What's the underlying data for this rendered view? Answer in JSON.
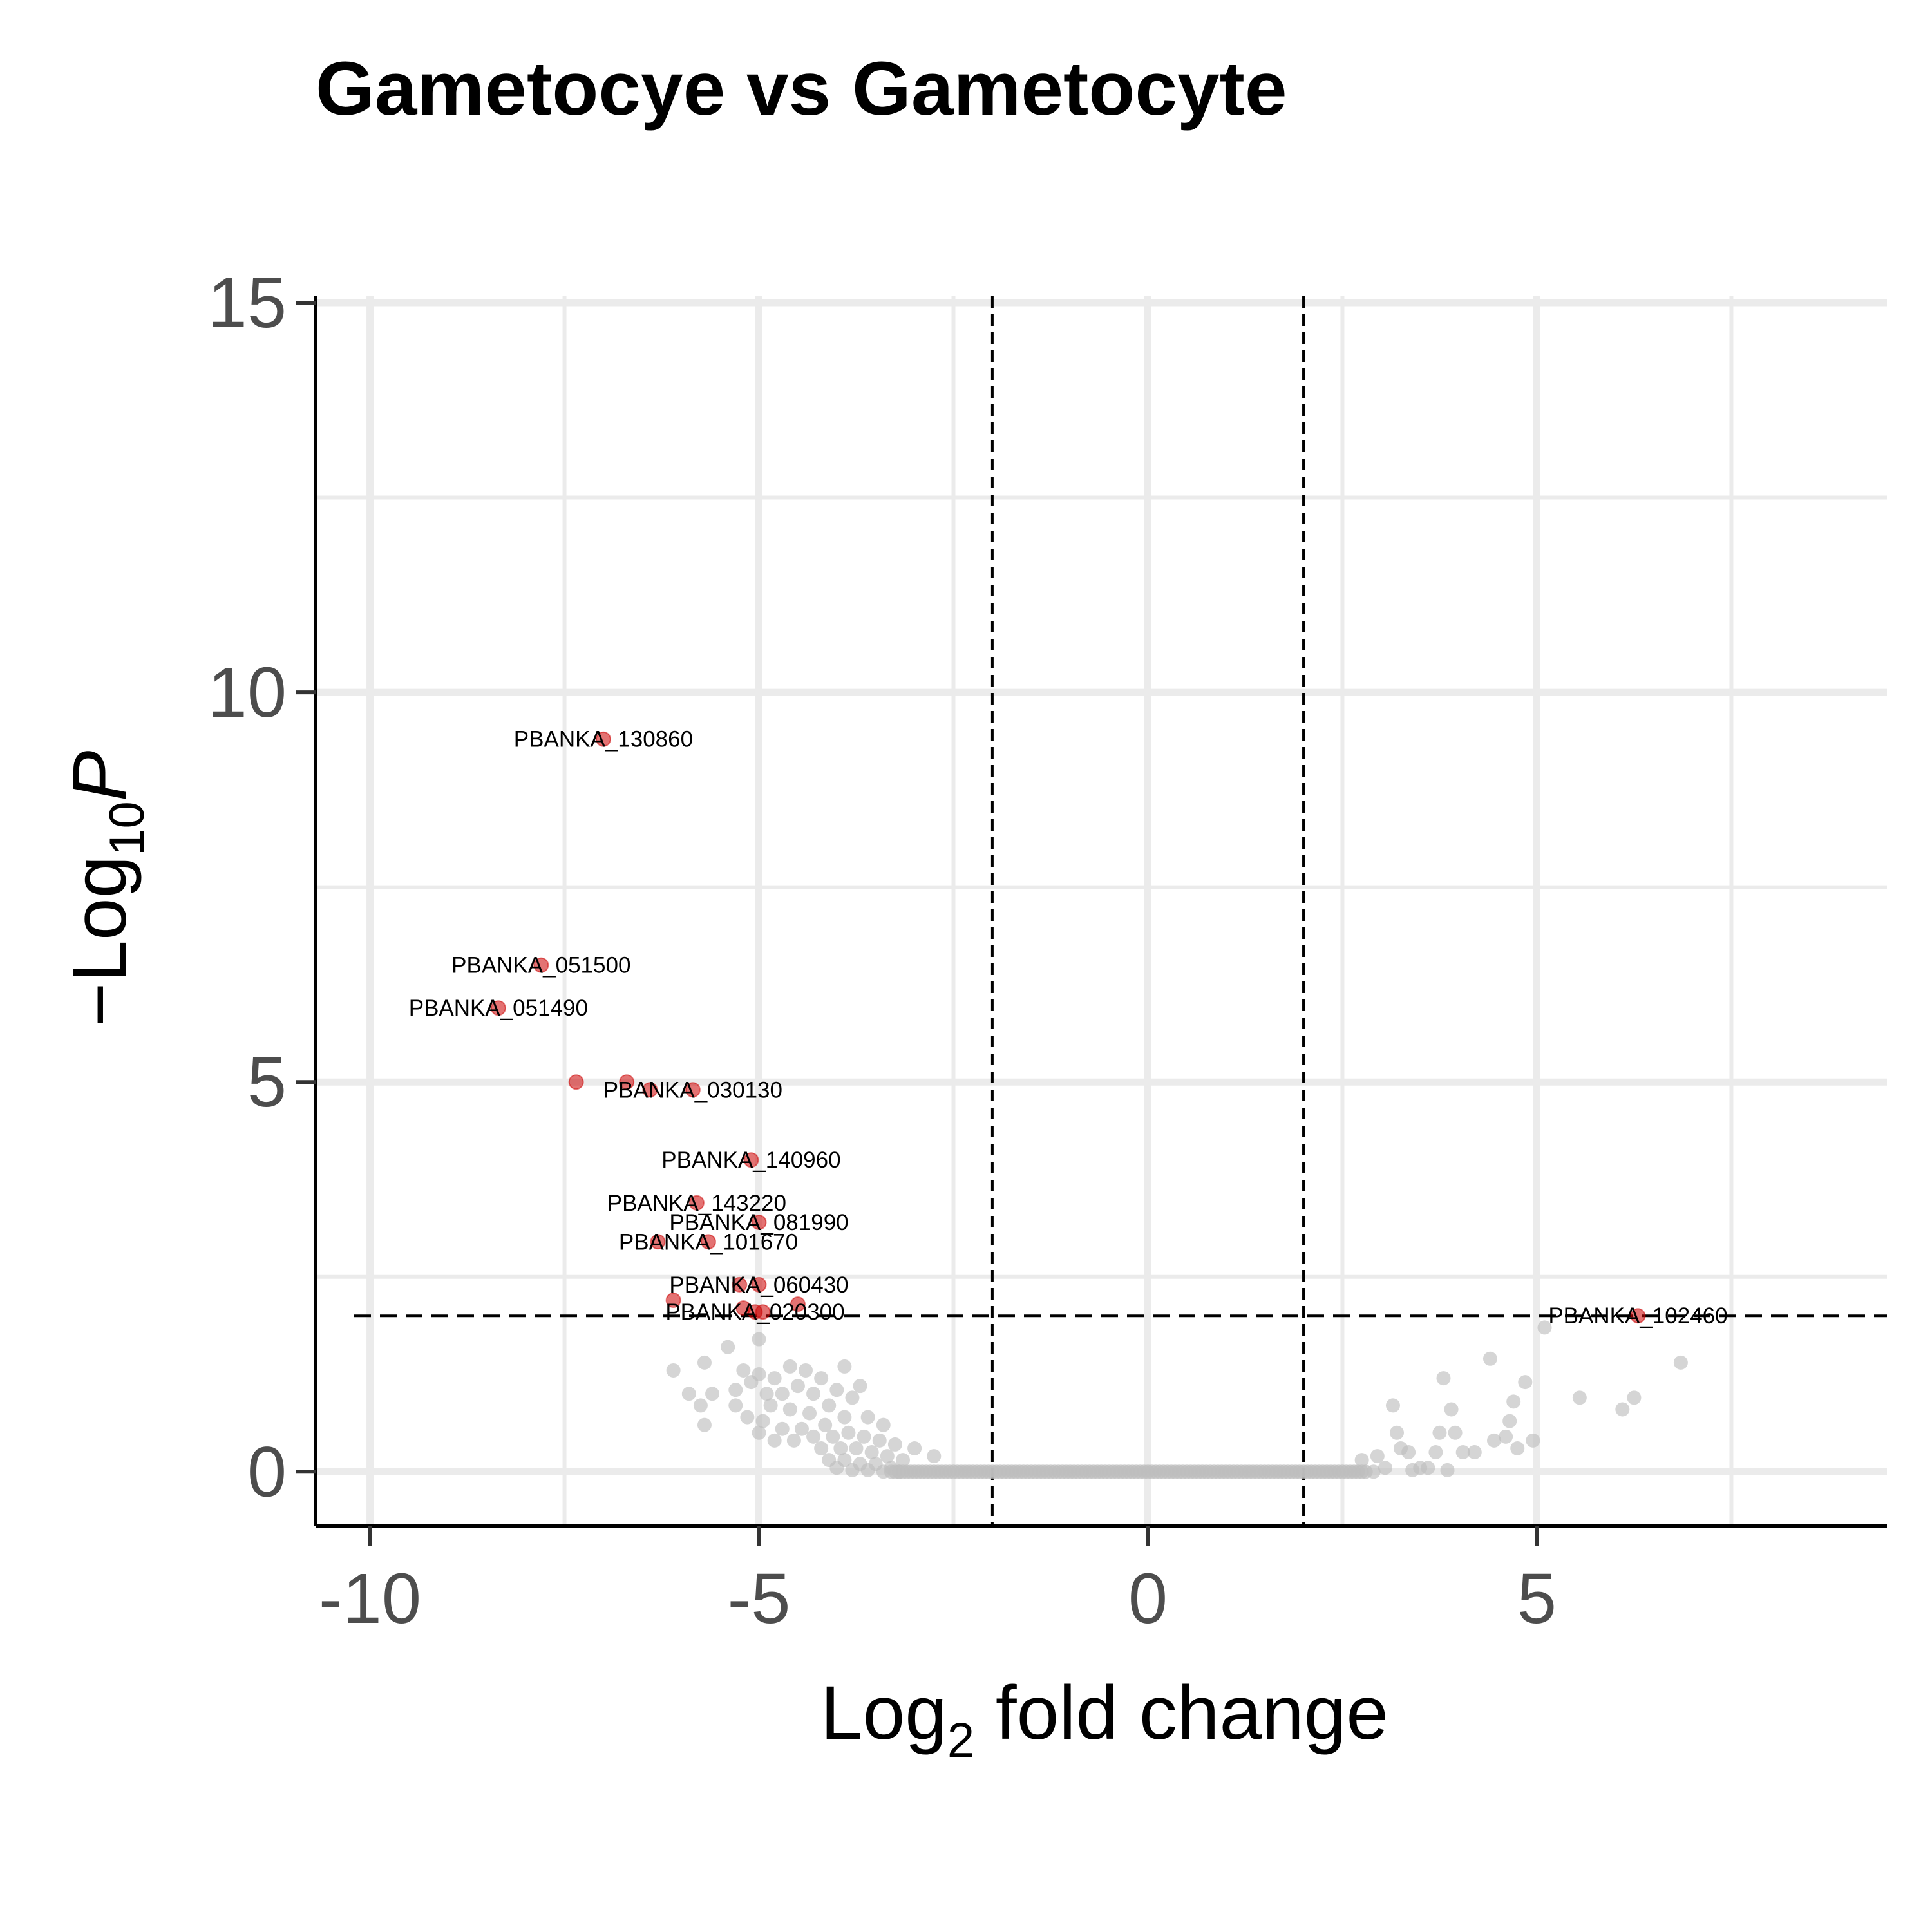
{
  "chart_data": {
    "type": "scatter",
    "title": "Gametocye vs Gametocyte",
    "xlabel_main": "Log",
    "xlabel_sub": "2",
    "xlabel_rest": " fold change",
    "ylabel_prefix": "−Log",
    "ylabel_sub": "10",
    "ylabel_italic": "P",
    "xlim": [
      -10.7,
      9.5
    ],
    "ylim": [
      -0.7,
      15
    ],
    "x_ticks": [
      -10,
      -5,
      0,
      5
    ],
    "x_tick_labels": [
      "-10",
      "-5",
      "0",
      "5"
    ],
    "y_ticks": [
      0,
      5,
      10,
      15
    ],
    "y_tick_labels": [
      "0",
      "5",
      "10",
      "15"
    ],
    "fc_cutoffs": [
      -2,
      2
    ],
    "p_cutoff": 2,
    "grid": true,
    "colors": {
      "significant": "#cc0000",
      "not_significant": "#bebebe",
      "grid": "#ebebeb",
      "axis": "#000000"
    },
    "significant_points": [
      {
        "x": -7.0,
        "y": 9.4,
        "label": "PBANKA_130860"
      },
      {
        "x": -7.8,
        "y": 6.5,
        "label": "PBANKA_051500"
      },
      {
        "x": -8.35,
        "y": 5.95,
        "label": "PBANKA_051490"
      },
      {
        "x": -7.35,
        "y": 5.0,
        "label": ""
      },
      {
        "x": -6.7,
        "y": 5.0,
        "label": ""
      },
      {
        "x": -6.4,
        "y": 4.9,
        "label": ""
      },
      {
        "x": -5.85,
        "y": 4.9,
        "label": "PBANKA_030130"
      },
      {
        "x": -5.1,
        "y": 4.0,
        "label": "PBANKA_140960"
      },
      {
        "x": -5.8,
        "y": 3.45,
        "label": "PBANKA_143220"
      },
      {
        "x": -5.0,
        "y": 3.2,
        "label": "PBANKA_081990"
      },
      {
        "x": -5.65,
        "y": 2.95,
        "label": "PBANKA_101670"
      },
      {
        "x": -6.3,
        "y": 2.95,
        "label": ""
      },
      {
        "x": -5.0,
        "y": 2.4,
        "label": "PBANKA_060430"
      },
      {
        "x": -5.25,
        "y": 2.4,
        "label": ""
      },
      {
        "x": -6.1,
        "y": 2.2,
        "label": ""
      },
      {
        "x": -4.5,
        "y": 2.15,
        "label": ""
      },
      {
        "x": -5.2,
        "y": 2.1,
        "label": ""
      },
      {
        "x": -5.05,
        "y": 2.05,
        "label": "PBANKA_020300"
      },
      {
        "x": -4.95,
        "y": 2.05,
        "label": ""
      },
      {
        "x": 6.3,
        "y": 2.0,
        "label": "PBANKA_102460"
      }
    ],
    "other_points": [
      [
        -5.0,
        1.7
      ],
      [
        -5.4,
        1.6
      ],
      [
        -5.7,
        1.4
      ],
      [
        -6.1,
        1.3
      ],
      [
        -5.2,
        1.3
      ],
      [
        -5.0,
        1.25
      ],
      [
        -4.6,
        1.35
      ],
      [
        -4.4,
        1.3
      ],
      [
        -4.8,
        1.2
      ],
      [
        -5.1,
        1.15
      ],
      [
        -4.5,
        1.1
      ],
      [
        -4.2,
        1.2
      ],
      [
        -3.9,
        1.35
      ],
      [
        -3.7,
        1.1
      ],
      [
        -5.9,
        1.0
      ],
      [
        -5.6,
        1.0
      ],
      [
        -5.3,
        1.05
      ],
      [
        -4.9,
        1.0
      ],
      [
        -4.7,
        1.0
      ],
      [
        -4.3,
        1.0
      ],
      [
        -4.0,
        1.05
      ],
      [
        -3.8,
        0.95
      ],
      [
        -5.75,
        0.85
      ],
      [
        -5.3,
        0.85
      ],
      [
        -4.85,
        0.85
      ],
      [
        -4.6,
        0.8
      ],
      [
        -4.35,
        0.75
      ],
      [
        -4.1,
        0.85
      ],
      [
        -5.7,
        0.6
      ],
      [
        -5.15,
        0.7
      ],
      [
        -4.95,
        0.65
      ],
      [
        -4.7,
        0.55
      ],
      [
        -4.45,
        0.55
      ],
      [
        -4.15,
        0.6
      ],
      [
        -3.9,
        0.7
      ],
      [
        -3.6,
        0.7
      ],
      [
        -3.4,
        0.6
      ],
      [
        -5.0,
        0.5
      ],
      [
        -4.8,
        0.4
      ],
      [
        -4.55,
        0.4
      ],
      [
        -4.3,
        0.45
      ],
      [
        -4.05,
        0.45
      ],
      [
        -3.85,
        0.5
      ],
      [
        -3.65,
        0.45
      ],
      [
        -3.45,
        0.4
      ],
      [
        -3.25,
        0.35
      ],
      [
        -3.0,
        0.3
      ],
      [
        -2.75,
        0.2
      ],
      [
        -4.2,
        0.3
      ],
      [
        -3.95,
        0.3
      ],
      [
        -3.75,
        0.3
      ],
      [
        -3.55,
        0.25
      ],
      [
        -3.35,
        0.2
      ],
      [
        -3.15,
        0.15
      ],
      [
        -4.1,
        0.15
      ],
      [
        -3.9,
        0.15
      ],
      [
        -3.7,
        0.1
      ],
      [
        -3.5,
        0.1
      ],
      [
        -3.3,
        0.05
      ],
      [
        -4.0,
        0.05
      ],
      [
        -3.8,
        0.02
      ],
      [
        -3.6,
        0.02
      ],
      [
        -3.4,
        0.0
      ],
      [
        -3.2,
        0.0
      ],
      [
        2.75,
        0.15
      ],
      [
        2.95,
        0.2
      ],
      [
        3.15,
        0.85
      ],
      [
        3.2,
        0.5
      ],
      [
        3.25,
        0.3
      ],
      [
        3.35,
        0.25
      ],
      [
        3.05,
        0.05
      ],
      [
        3.5,
        0.05
      ],
      [
        3.6,
        0.05
      ],
      [
        3.8,
        1.2
      ],
      [
        3.75,
        0.5
      ],
      [
        3.7,
        0.25
      ],
      [
        3.9,
        0.8
      ],
      [
        3.95,
        0.5
      ],
      [
        4.05,
        0.25
      ],
      [
        4.2,
        0.25
      ],
      [
        4.4,
        1.45
      ],
      [
        4.45,
        0.4
      ],
      [
        4.65,
        0.65
      ],
      [
        4.6,
        0.45
      ],
      [
        4.7,
        0.9
      ],
      [
        4.75,
        0.3
      ],
      [
        4.85,
        1.15
      ],
      [
        4.95,
        0.4
      ],
      [
        5.1,
        1.85
      ],
      [
        5.55,
        0.95
      ],
      [
        6.1,
        0.8
      ],
      [
        6.25,
        0.95
      ],
      [
        6.85,
        1.4
      ],
      [
        3.4,
        0.02
      ],
      [
        3.85,
        0.02
      ],
      [
        2.9,
        0.0
      ]
    ],
    "baseline_cluster": {
      "x_from": -3.3,
      "x_to": 2.8,
      "y": 0
    }
  }
}
